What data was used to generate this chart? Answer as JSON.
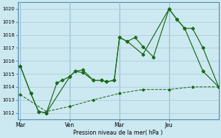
{
  "background_color": "#cce8f0",
  "grid_color": "#aaccdd",
  "line_color": "#1a6b1a",
  "xlabel": "Pression niveau de la mer( hPa )",
  "ylim": [
    1011.5,
    1020.5
  ],
  "yticks": [
    1012,
    1013,
    1014,
    1015,
    1016,
    1017,
    1018,
    1019,
    1020
  ],
  "day_labels": [
    "Mar",
    "Ven",
    "Mar",
    "Jeu"
  ],
  "day_positions": [
    0,
    19,
    38,
    57
  ],
  "xlim": [
    -1,
    76
  ],
  "series1_x": [
    0,
    4,
    7,
    10,
    14,
    16,
    19,
    21,
    24,
    28,
    31,
    33,
    36,
    38,
    41,
    44,
    47,
    51,
    57,
    60,
    63,
    66,
    70,
    76
  ],
  "series1_y": [
    1015.6,
    1013.5,
    1012.1,
    1012.0,
    1014.3,
    1014.5,
    1014.8,
    1015.2,
    1015.1,
    1014.5,
    1014.5,
    1014.4,
    1014.5,
    1017.8,
    1017.5,
    1017.8,
    1017.1,
    1016.3,
    1020.0,
    1019.2,
    1018.5,
    1018.5,
    1017.0,
    1014.0
  ],
  "series2_x": [
    0,
    4,
    7,
    10,
    19,
    21,
    24,
    28,
    31,
    33,
    36,
    38,
    41,
    47,
    57,
    60,
    63,
    70,
    76
  ],
  "series2_y": [
    1015.6,
    1013.5,
    1012.1,
    1012.0,
    1014.8,
    1015.2,
    1015.3,
    1014.5,
    1014.5,
    1014.4,
    1014.5,
    1017.8,
    1017.5,
    1016.5,
    1020.0,
    1019.2,
    1018.5,
    1015.2,
    1014.0
  ],
  "series_trend_x": [
    0,
    10,
    19,
    28,
    38,
    47,
    57,
    66,
    76
  ],
  "series_trend_y": [
    1013.4,
    1012.1,
    1012.5,
    1013.0,
    1013.5,
    1013.8,
    1013.8,
    1014.0,
    1014.0
  ],
  "vline_positions": [
    0,
    19,
    38,
    57
  ],
  "vline_color": "#4488aa"
}
